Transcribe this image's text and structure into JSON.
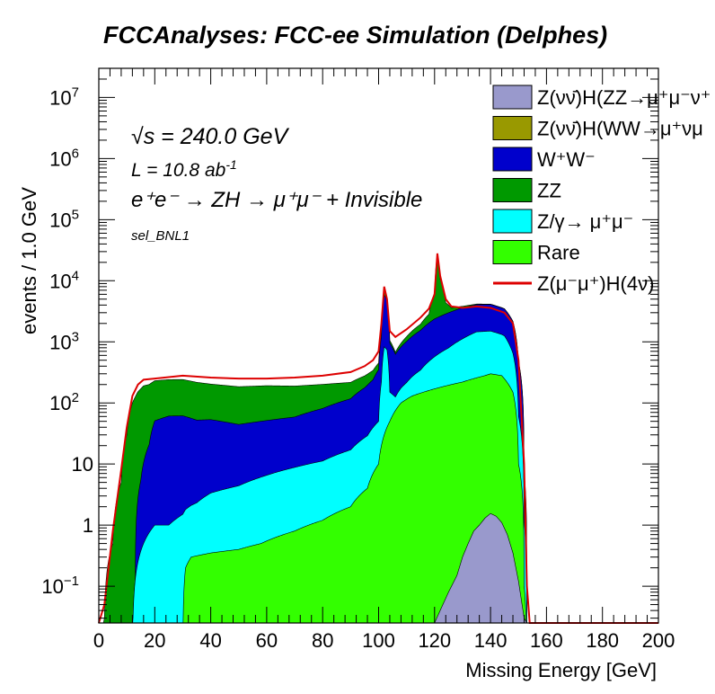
{
  "chart_data": {
    "type": "area",
    "title": "FCCAnalyses: FCC-ee Simulation (Delphes)",
    "xlabel": "Missing Energy [GeV]",
    "ylabel": "events / 1.0 GeV",
    "xlim": [
      0,
      200
    ],
    "ylim": [
      0.025,
      30000000
    ],
    "yscale": "log",
    "stacked": true,
    "x_ticks": [
      "0",
      "20",
      "40",
      "60",
      "80",
      "100",
      "120",
      "140",
      "160",
      "180",
      "200"
    ],
    "y_ticks": [
      {
        "value": 0.1,
        "base": "10",
        "exp": "−1"
      },
      {
        "value": 1,
        "base": "1",
        "exp": ""
      },
      {
        "value": 10,
        "base": "10",
        "exp": ""
      },
      {
        "value": 100,
        "base": "10",
        "exp": "2"
      },
      {
        "value": 1000,
        "base": "10",
        "exp": "3"
      },
      {
        "value": 10000,
        "base": "10",
        "exp": "4"
      },
      {
        "value": 100000,
        "base": "10",
        "exp": "5"
      },
      {
        "value": 1000000,
        "base": "10",
        "exp": "6"
      },
      {
        "value": 10000000,
        "base": "10",
        "exp": "7"
      }
    ],
    "annotations": {
      "sqrt_s": "√s = 240.0 GeV",
      "lumi_base": "L = 10.8 ab",
      "lumi_exp": "-1",
      "process": "e⁺e⁻ → ZH → μ⁺μ⁻ + Invisible",
      "selection": "sel_BNL1"
    },
    "legend_position": "top-right",
    "legend": [
      {
        "label": "Z(νν̄)H(ZZ→μ⁺μ⁻ν⁺",
        "color": "#9999cc",
        "style": "box"
      },
      {
        "label": "Z(νν̄)H(WW→μ⁺νμ",
        "color": "#999900",
        "style": "box"
      },
      {
        "label": "W⁺W⁻",
        "color": "#0000cc",
        "style": "box"
      },
      {
        "label": "ZZ",
        "color": "#009900",
        "style": "box"
      },
      {
        "label": "Z/γ→ μ⁺μ⁻",
        "color": "#00ffff",
        "style": "box"
      },
      {
        "label": "Rare",
        "color": "#33ff00",
        "style": "box"
      },
      {
        "label": "Z(μ⁻μ⁺)H(4ν)",
        "color": "#dd0000",
        "style": "line"
      }
    ],
    "series": [
      {
        "name": "Rare",
        "color": "#33ff00",
        "x": [
          0,
          30,
          31,
          33,
          40,
          50,
          58,
          62,
          70,
          80,
          90,
          96,
          100,
          104,
          108,
          112,
          118,
          122,
          126,
          130,
          134,
          138,
          140,
          144,
          148,
          150,
          152,
          153
        ],
        "y": [
          0,
          0,
          0.2,
          0.3,
          0.35,
          0.4,
          0.5,
          0.6,
          0.8,
          1.2,
          2,
          4,
          10,
          50,
          100,
          130,
          160,
          180,
          200,
          220,
          250,
          280,
          300,
          280,
          150,
          10,
          0.1,
          0
        ]
      },
      {
        "name": "Z/γ→ μ⁺μ⁻",
        "color": "#00ffff",
        "x": [
          0,
          8,
          12,
          16,
          20,
          25,
          30,
          35,
          40,
          50,
          60,
          70,
          80,
          90,
          96,
          100,
          101,
          102,
          103,
          104,
          106,
          110,
          115,
          120,
          125,
          130,
          135,
          140,
          145,
          148,
          150,
          152,
          153
        ],
        "y": [
          0,
          0,
          0,
          0.5,
          1,
          1,
          1.5,
          2,
          3,
          4,
          6,
          8,
          10,
          15,
          25,
          40,
          200,
          800,
          700,
          100,
          50,
          100,
          200,
          400,
          600,
          900,
          1200,
          1200,
          1000,
          500,
          50,
          1,
          0
        ]
      },
      {
        "name": "W⁺W⁻",
        "color": "#0000cc",
        "x": [
          0,
          10,
          13,
          15,
          18,
          20,
          25,
          30,
          35,
          40,
          50,
          60,
          70,
          80,
          90,
          95,
          98,
          100,
          101,
          102,
          103,
          104,
          106,
          110,
          115,
          120,
          125,
          130,
          135,
          140,
          145,
          148,
          150,
          152,
          153
        ],
        "y": [
          0,
          0,
          0,
          5,
          20,
          50,
          60,
          60,
          50,
          50,
          40,
          45,
          50,
          70,
          100,
          150,
          200,
          300,
          1000,
          5000,
          4000,
          800,
          500,
          800,
          1200,
          1800,
          2200,
          2500,
          2600,
          2600,
          2200,
          1500,
          400,
          5,
          0
        ]
      },
      {
        "name": "ZZ",
        "color": "#009900",
        "x": [
          0,
          2,
          5,
          8,
          10,
          12,
          14,
          16,
          20,
          30,
          40,
          50,
          60,
          70,
          80,
          90,
          95,
          98,
          100,
          101,
          102,
          103,
          104,
          106,
          110,
          115,
          118,
          120,
          121,
          122,
          124,
          126,
          130,
          135,
          140,
          145,
          148,
          150,
          152,
          153
        ],
        "y": [
          0,
          0.03,
          0.5,
          5,
          30,
          100,
          150,
          180,
          180,
          180,
          150,
          140,
          140,
          130,
          120,
          100,
          100,
          100,
          100,
          200,
          1000,
          500,
          100,
          50,
          200,
          400,
          800,
          4000,
          25000,
          8000,
          1500,
          500,
          200,
          100,
          50,
          30,
          20,
          10,
          1,
          0
        ]
      }
    ],
    "signal": {
      "name": "Z(μ⁻μ⁺)H(4ν)",
      "color": "#dd0000",
      "x": [
        0,
        2,
        5,
        8,
        10,
        12,
        14,
        16,
        20,
        30,
        40,
        50,
        60,
        70,
        80,
        90,
        95,
        98,
        100,
        101,
        102,
        103,
        104,
        106,
        110,
        115,
        118,
        120,
        121,
        122,
        124,
        126,
        130,
        135,
        140,
        145,
        148,
        150,
        152,
        153,
        154,
        200
      ],
      "y": [
        0.025,
        0.05,
        0.8,
        8,
        40,
        130,
        200,
        240,
        250,
        280,
        260,
        250,
        250,
        260,
        280,
        320,
        400,
        500,
        700,
        2000,
        8000,
        5000,
        1500,
        1200,
        1600,
        2500,
        3500,
        6000,
        28000,
        12000,
        5000,
        3800,
        3600,
        3800,
        3600,
        3000,
        2000,
        500,
        10,
        0.1,
        0.025,
        0.025
      ]
    },
    "extra_fill": {
      "name": "Z(νν̄)H(ZZ→μ⁺μ⁻ν⁺",
      "color": "#9999cc",
      "x": [
        120,
        122,
        125,
        128,
        130,
        132,
        134,
        136,
        138,
        140,
        142,
        144,
        146,
        148,
        150,
        152,
        153
      ],
      "y": [
        0.025,
        0.04,
        0.08,
        0.15,
        0.3,
        0.5,
        0.8,
        1.0,
        1.3,
        1.55,
        1.4,
        1.1,
        0.7,
        0.35,
        0.12,
        0.03,
        0.025
      ]
    }
  }
}
